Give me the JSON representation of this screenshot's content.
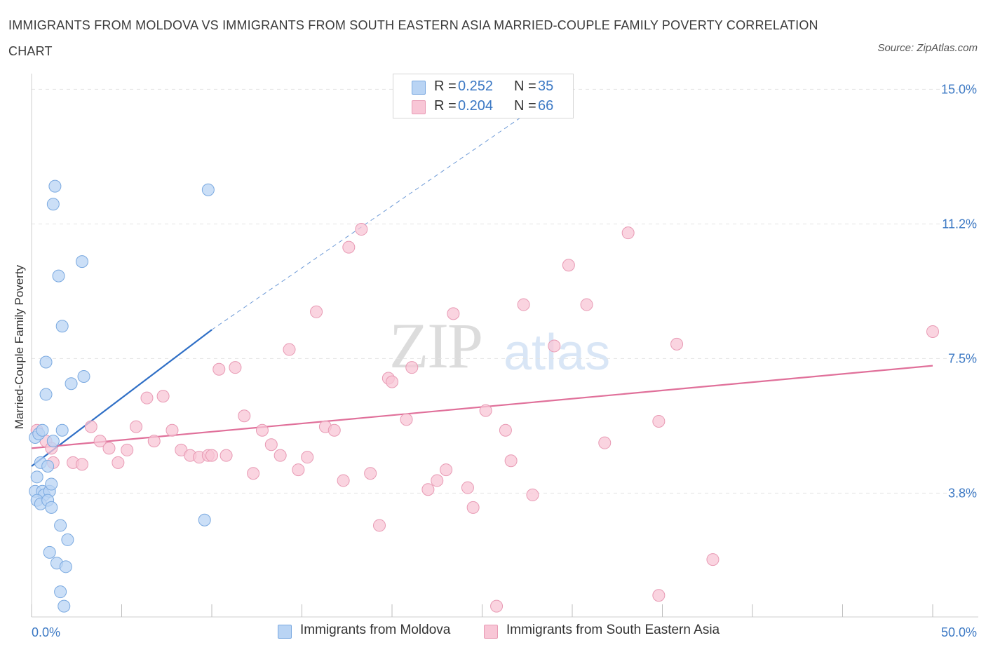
{
  "header": {
    "title": "IMMIGRANTS FROM MOLDOVA VS IMMIGRANTS FROM SOUTH EASTERN ASIA MARRIED-COUPLE FAMILY POVERTY CORRELATION CHART",
    "source": "Source: ZipAtlas.com"
  },
  "watermark": {
    "zip": "ZIP",
    "atlas": "atlas"
  },
  "legend": {
    "r_label": "R =",
    "n_label": "N =",
    "moldova": {
      "r": "0.252",
      "n": "35"
    },
    "sea": {
      "r": "0.204",
      "n": "66"
    }
  },
  "colors": {
    "moldova_fill": "#b9d4f4",
    "moldova_stroke": "#7aa9e0",
    "moldova_line": "#2f6fc6",
    "sea_fill": "#f8c6d6",
    "sea_stroke": "#e89ab4",
    "sea_line": "#e0709a",
    "tick_label": "#3b78c4",
    "grid": "#e4e4e4"
  },
  "chart_data": {
    "type": "scatter",
    "ylabel": "Married-Couple Family Poverty",
    "xlim": [
      0,
      50
    ],
    "ylim": [
      0,
      15
    ],
    "x_tick_labels": [
      "0.0%",
      "50.0%"
    ],
    "y_ticks": [
      3.75,
      7.5,
      11.25,
      15.0
    ],
    "y_tick_labels": [
      "3.8%",
      "7.5%",
      "11.2%",
      "15.0%"
    ],
    "grid": "horizontal-dashed",
    "legend_position": "top-center",
    "series": [
      {
        "name": "Immigrants from Moldova",
        "color": "#b9d4f4",
        "trend": {
          "x": [
            0,
            10
          ],
          "y": [
            4.5,
            8.3
          ],
          "extended_x": [
            10,
            30
          ],
          "extended_y": [
            8.3,
            15.2
          ]
        },
        "points": [
          [
            0.2,
            5.3
          ],
          [
            0.4,
            5.4
          ],
          [
            0.6,
            5.5
          ],
          [
            0.3,
            4.2
          ],
          [
            0.5,
            4.6
          ],
          [
            0.9,
            4.5
          ],
          [
            0.2,
            3.8
          ],
          [
            0.6,
            3.8
          ],
          [
            0.7,
            3.7
          ],
          [
            1.0,
            3.8
          ],
          [
            0.3,
            3.55
          ],
          [
            0.5,
            3.45
          ],
          [
            0.9,
            3.55
          ],
          [
            1.1,
            3.35
          ],
          [
            1.3,
            12.3
          ],
          [
            1.2,
            11.8
          ],
          [
            1.5,
            9.8
          ],
          [
            2.8,
            10.2
          ],
          [
            1.7,
            8.4
          ],
          [
            0.8,
            7.4
          ],
          [
            0.8,
            6.5
          ],
          [
            2.2,
            6.8
          ],
          [
            2.9,
            7.0
          ],
          [
            1.7,
            5.5
          ],
          [
            1.2,
            5.2
          ],
          [
            1.1,
            4.0
          ],
          [
            1.6,
            2.85
          ],
          [
            1.0,
            2.1
          ],
          [
            2.0,
            2.45
          ],
          [
            1.4,
            1.8
          ],
          [
            1.9,
            1.7
          ],
          [
            1.6,
            1.0
          ],
          [
            1.8,
            0.6
          ],
          [
            9.6,
            3.0
          ],
          [
            9.8,
            12.2
          ]
        ]
      },
      {
        "name": "Immigrants from South Eastern Asia",
        "color": "#f8c6d6",
        "trend": {
          "x": [
            0,
            50
          ],
          "y": [
            5.0,
            7.3
          ]
        },
        "points": [
          [
            0.3,
            5.5
          ],
          [
            0.8,
            5.2
          ],
          [
            1.1,
            5.0
          ],
          [
            1.2,
            4.6
          ],
          [
            2.3,
            4.6
          ],
          [
            2.8,
            4.55
          ],
          [
            3.3,
            5.6
          ],
          [
            3.8,
            5.2
          ],
          [
            4.3,
            5.0
          ],
          [
            4.8,
            4.6
          ],
          [
            5.3,
            4.95
          ],
          [
            5.8,
            5.6
          ],
          [
            6.4,
            6.4
          ],
          [
            6.8,
            5.2
          ],
          [
            7.3,
            6.45
          ],
          [
            7.8,
            5.5
          ],
          [
            8.3,
            4.95
          ],
          [
            8.8,
            4.8
          ],
          [
            9.3,
            4.75
          ],
          [
            9.8,
            4.8
          ],
          [
            10.4,
            7.2
          ],
          [
            10.8,
            4.8
          ],
          [
            11.3,
            7.25
          ],
          [
            11.8,
            5.9
          ],
          [
            12.3,
            4.3
          ],
          [
            12.8,
            5.5
          ],
          [
            13.3,
            5.1
          ],
          [
            13.8,
            4.8
          ],
          [
            14.3,
            7.75
          ],
          [
            14.8,
            4.4
          ],
          [
            15.3,
            4.75
          ],
          [
            15.8,
            8.8
          ],
          [
            16.3,
            5.6
          ],
          [
            16.8,
            5.5
          ],
          [
            17.3,
            4.1
          ],
          [
            17.6,
            10.6
          ],
          [
            18.3,
            11.1
          ],
          [
            18.8,
            4.3
          ],
          [
            19.3,
            2.85
          ],
          [
            19.8,
            6.95
          ],
          [
            20.0,
            6.85
          ],
          [
            20.8,
            5.8
          ],
          [
            21.1,
            7.25
          ],
          [
            22.0,
            3.85
          ],
          [
            22.5,
            4.1
          ],
          [
            23.0,
            4.4
          ],
          [
            23.4,
            8.75
          ],
          [
            24.2,
            3.9
          ],
          [
            24.5,
            3.35
          ],
          [
            25.2,
            6.05
          ],
          [
            25.8,
            0.6
          ],
          [
            26.3,
            5.5
          ],
          [
            26.6,
            4.65
          ],
          [
            27.3,
            9.0
          ],
          [
            27.8,
            3.7
          ],
          [
            29.0,
            7.85
          ],
          [
            29.8,
            10.1
          ],
          [
            30.8,
            9.0
          ],
          [
            31.8,
            5.15
          ],
          [
            33.1,
            11.0
          ],
          [
            34.8,
            5.75
          ],
          [
            34.8,
            0.9
          ],
          [
            35.8,
            7.9
          ],
          [
            37.8,
            1.9
          ],
          [
            50.0,
            8.25
          ],
          [
            10.0,
            4.8
          ]
        ]
      }
    ]
  },
  "bottom_legend": {
    "moldova": "Immigrants from Moldova",
    "sea": "Immigrants from South Eastern Asia"
  }
}
